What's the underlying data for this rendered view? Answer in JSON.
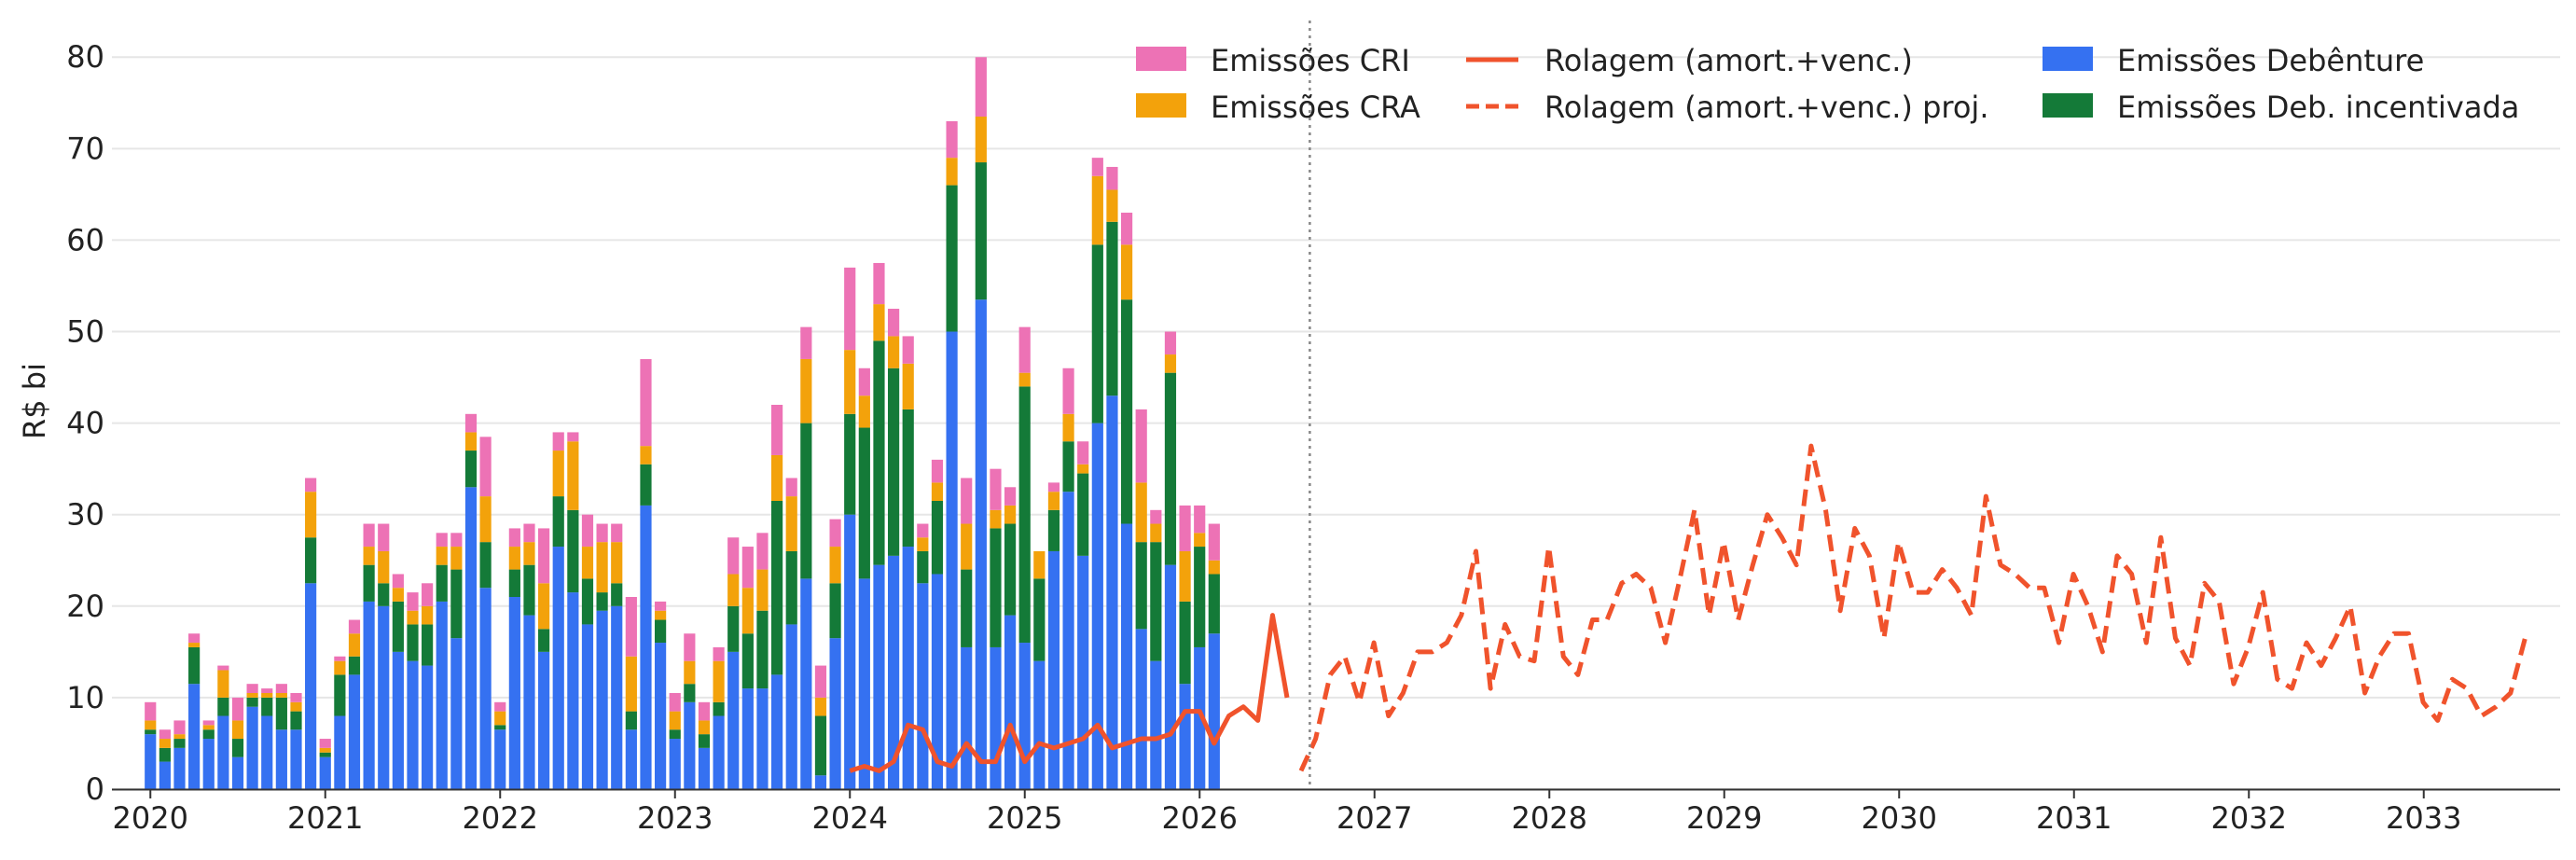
{
  "colors": {
    "cri": "#ed72b5",
    "cra": "#f3a20b",
    "debenture": "#3571f1",
    "deb_incentivada": "#147a38",
    "rolagem": "#f0532c",
    "grid": "#e6e6e6",
    "axis": "#333333",
    "divider": "#888888"
  },
  "chart_data": {
    "type": "bar",
    "ylabel": "R$ bi",
    "ylim": [
      0,
      84
    ],
    "yticks": [
      0,
      10,
      20,
      30,
      40,
      50,
      60,
      70,
      80
    ],
    "xlim": [
      2019.78,
      2033.78
    ],
    "xticks": [
      "2020",
      "2021",
      "2022",
      "2023",
      "2024",
      "2025",
      "2026",
      "2027",
      "2028",
      "2029",
      "2030",
      "2031",
      "2032",
      "2033"
    ],
    "grid": "horizontal",
    "legend_position": "top-right",
    "divider_x": 2026.63,
    "bars_start": 2020.0,
    "bar_step": 0.08333,
    "legend": {
      "cri": "Emissões CRI",
      "cra": "Emissões CRA",
      "rolagem": "Rolagem (amort.+venc.)",
      "rolagem_proj": "Rolagem (amort.+venc.) proj.",
      "debenture": "Emissões Debênture",
      "deb_incentivada": "Emissões Deb. incentivada"
    },
    "series": [
      {
        "name": "Emissões Debênture",
        "key": "debenture",
        "values": [
          6,
          3,
          4.5,
          11.5,
          5.5,
          8,
          3.5,
          9,
          8,
          6.5,
          6.5,
          22.5,
          3.5,
          8,
          12.5,
          20.5,
          20,
          15,
          14,
          13.5,
          20.5,
          16.5,
          33,
          22,
          6.5,
          21,
          19,
          15,
          26.5,
          21.5,
          18,
          19.5,
          20,
          6.5,
          31,
          16,
          5.5,
          9.5,
          4.5,
          8,
          15,
          11,
          11,
          12.5,
          18,
          23,
          1.5,
          16.5,
          30,
          23,
          24.5,
          25.5,
          26.5,
          22.5,
          23.5,
          50,
          15.5,
          53.5,
          15.5,
          19,
          16,
          14,
          26,
          32.5,
          25.5,
          40,
          43,
          29,
          17.5,
          14,
          24.5,
          11.5,
          15.5,
          17
        ]
      },
      {
        "name": "Emissões Deb. incentivada",
        "key": "deb_incentivada",
        "values": [
          0.5,
          1.5,
          1,
          4,
          1,
          2,
          2,
          1,
          2,
          3.5,
          2,
          5,
          0.5,
          4.5,
          2,
          4,
          2.5,
          5.5,
          4,
          4.5,
          4,
          7.5,
          4,
          5,
          0.5,
          3,
          5.5,
          2.5,
          5.5,
          9,
          5,
          2,
          2.5,
          2,
          4.5,
          2.5,
          1,
          2,
          1.5,
          1.5,
          5,
          6,
          8.5,
          19,
          8,
          17,
          6.5,
          6,
          11,
          16.5,
          24.5,
          20.5,
          15,
          3.5,
          8,
          16,
          8.5,
          15,
          13,
          10,
          28,
          9,
          4.5,
          5.5,
          9,
          19.5,
          19,
          24.5,
          9.5,
          13,
          21,
          9,
          11,
          6.5
        ]
      },
      {
        "name": "Emissões CRA",
        "key": "cra",
        "values": [
          1,
          1,
          0.5,
          0.5,
          0.5,
          3,
          2,
          0.5,
          0.5,
          0.5,
          1,
          5,
          0.5,
          1.5,
          2.5,
          2,
          3.5,
          1.5,
          1.5,
          2,
          2,
          2.5,
          2,
          5,
          1.5,
          2.5,
          2.5,
          5,
          5,
          7.5,
          3.5,
          5.5,
          4.5,
          6,
          2,
          1,
          2,
          2.5,
          1.5,
          4.5,
          3.5,
          5,
          4.5,
          5,
          6,
          7,
          2,
          4,
          7,
          3.5,
          4,
          3.5,
          5,
          1.5,
          2,
          3,
          5,
          5,
          2,
          2,
          1.5,
          3,
          2,
          3,
          1,
          7.5,
          3.5,
          6,
          6.5,
          2,
          2,
          5.5,
          1.5,
          1.5
        ]
      },
      {
        "name": "Emissões CRI",
        "key": "cri",
        "values": [
          2,
          1,
          1.5,
          1,
          0.5,
          0.5,
          2.5,
          1,
          0.5,
          1,
          1,
          1.5,
          1,
          0.5,
          1.5,
          2.5,
          3,
          1.5,
          2,
          2.5,
          1.5,
          1.5,
          2,
          6.5,
          1,
          2,
          2,
          6,
          2,
          1,
          3.5,
          2,
          2,
          6.5,
          9.5,
          1,
          2,
          3,
          2,
          1.5,
          4,
          4.5,
          4,
          5.5,
          2,
          3.5,
          3.5,
          3,
          9,
          3,
          4.5,
          3,
          3,
          1.5,
          2.5,
          4,
          5,
          6.5,
          4.5,
          2,
          5,
          0,
          1,
          5,
          2.5,
          2,
          2.5,
          3.5,
          8,
          1.5,
          2.5,
          5,
          3,
          4
        ]
      },
      {
        "name": "Rolagem (amort.+venc.)",
        "key": "rolagem",
        "x": [
          2024.0,
          2024.083,
          2024.167,
          2024.25,
          2024.333,
          2024.417,
          2024.5,
          2024.583,
          2024.667,
          2024.75,
          2024.833,
          2024.917,
          2025.0,
          2025.083,
          2025.167,
          2025.25,
          2025.333,
          2025.417,
          2025.5,
          2025.583,
          2025.667,
          2025.75,
          2025.833,
          2025.917,
          2026.0,
          2026.083,
          2026.167,
          2026.25,
          2026.333,
          2026.417,
          2026.5
        ],
        "values": [
          2,
          2.5,
          2,
          3,
          7,
          6.5,
          3,
          2.5,
          5,
          3,
          3,
          7,
          3,
          5,
          4.5,
          5,
          5.5,
          7,
          4.5,
          5,
          5.5,
          5.5,
          6,
          8.5,
          8.5,
          5,
          8,
          9,
          7.5,
          19,
          10
        ]
      },
      {
        "name": "Rolagem (amort.+venc.) proj.",
        "key": "rolagem_proj",
        "x_start": 2026.58,
        "x_step": 0.08333,
        "values": [
          2,
          5.5,
          12.5,
          14.5,
          9.5,
          16,
          8,
          10.5,
          15,
          15,
          16,
          19,
          26,
          11,
          18,
          14.5,
          14,
          26.5,
          14.5,
          12.5,
          18.5,
          18.5,
          22.5,
          23.5,
          22,
          16,
          23,
          30.5,
          19,
          27,
          18.5,
          24.5,
          30,
          27.5,
          24.5,
          37.5,
          30.5,
          19.5,
          28.5,
          25.5,
          16.5,
          27,
          21.5,
          21.5,
          24,
          22,
          19,
          32,
          24.5,
          23.5,
          22,
          22,
          16,
          23.5,
          20,
          15,
          25.5,
          23.5,
          16,
          27.5,
          16.5,
          13.5,
          22.5,
          20.5,
          11.5,
          15.5,
          21.5,
          12,
          11,
          16,
          13.5,
          16.5,
          20,
          10.5,
          14.5,
          17,
          17,
          9.5,
          7.5,
          12,
          11,
          8,
          9,
          10.5,
          16.5
        ]
      }
    ]
  }
}
